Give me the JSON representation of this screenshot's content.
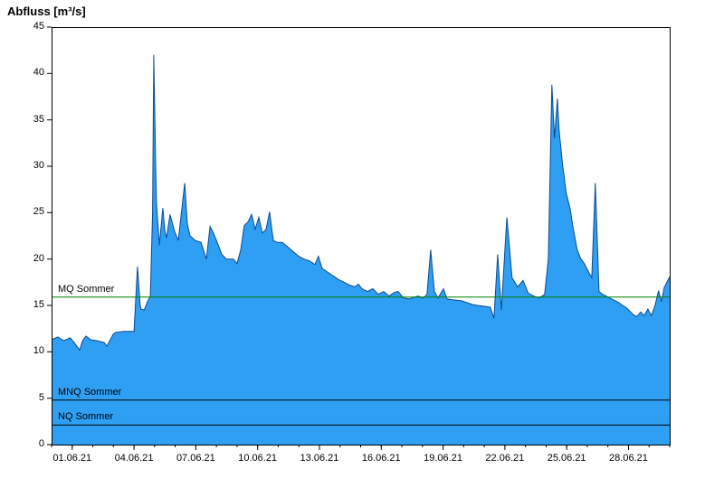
{
  "title": "Abfluss [m³/s]",
  "chart_data": {
    "type": "area",
    "title": "Abfluss [m³/s]",
    "xlabel": "",
    "ylabel": "Abfluss [m³/s]",
    "ylim": [
      0,
      45
    ],
    "xlim_days": [
      0,
      30
    ],
    "grid": false,
    "legend": "none",
    "y_ticks": [
      0,
      5,
      10,
      15,
      20,
      25,
      30,
      35,
      40,
      45
    ],
    "x_ticks": [
      {
        "t": 1,
        "label": "01.06.21"
      },
      {
        "t": 4,
        "label": "04.06.21"
      },
      {
        "t": 7,
        "label": "07.06.21"
      },
      {
        "t": 10,
        "label": "10.06.21"
      },
      {
        "t": 13,
        "label": "13.06.21"
      },
      {
        "t": 16,
        "label": "16.06.21"
      },
      {
        "t": 19,
        "label": "19.06.21"
      },
      {
        "t": 22,
        "label": "22.06.21"
      },
      {
        "t": 25,
        "label": "25.06.21"
      },
      {
        "t": 28,
        "label": "28.06.21"
      }
    ],
    "series": [
      {
        "name": "Abfluss",
        "unit": "m³/s",
        "x": [
          0,
          0.3,
          0.6,
          0.9,
          1.1,
          1.36,
          1.5,
          1.67,
          1.9,
          2.2,
          2.55,
          2.68,
          2.99,
          3.12,
          3.5,
          4.0,
          4.17,
          4.3,
          4.35,
          4.5,
          4.65,
          4.79,
          4.9,
          4.96,
          5.05,
          5.09,
          5.23,
          5.4,
          5.5,
          5.58,
          5.75,
          5.97,
          6.15,
          6.46,
          6.59,
          6.72,
          6.98,
          7.25,
          7.51,
          7.69,
          7.86,
          8.04,
          8.26,
          8.48,
          8.83,
          9.0,
          9.18,
          9.35,
          9.53,
          9.71,
          9.88,
          10.06,
          10.23,
          10.41,
          10.58,
          10.76,
          10.94,
          11.2,
          11.46,
          11.73,
          11.99,
          12.25,
          12.52,
          12.78,
          12.95,
          13.13,
          13.39,
          13.66,
          13.92,
          14.19,
          14.45,
          14.71,
          14.89,
          15.06,
          15.33,
          15.59,
          15.85,
          16.12,
          16.38,
          16.64,
          16.82,
          17.08,
          17.35,
          17.61,
          17.79,
          18.05,
          18.22,
          18.4,
          18.58,
          18.75,
          19.02,
          19.19,
          19.46,
          19.9,
          20.16,
          20.42,
          20.69,
          21.04,
          21.3,
          21.47,
          21.65,
          21.83,
          22.0,
          22.1,
          22.35,
          22.62,
          22.88,
          23.14,
          23.41,
          23.67,
          23.93,
          24.11,
          24.28,
          24.41,
          24.55,
          24.63,
          24.81,
          24.99,
          25.16,
          25.34,
          25.51,
          25.69,
          25.86,
          26.04,
          26.22,
          26.39,
          26.57,
          26.74,
          27.01,
          27.27,
          27.53,
          27.71,
          27.88,
          28.06,
          28.24,
          28.41,
          28.59,
          28.76,
          28.94,
          29.11,
          29.29,
          29.46,
          29.6,
          29.73,
          29.86,
          30.0
        ],
        "y": [
          11.3,
          11.6,
          11.2,
          11.5,
          11.0,
          10.2,
          11.2,
          11.7,
          11.3,
          11.2,
          11.0,
          10.6,
          11.9,
          12.1,
          12.2,
          12.2,
          19.2,
          15.0,
          14.6,
          14.5,
          15.4,
          16.0,
          25.0,
          42.0,
          30.0,
          26.0,
          21.5,
          25.5,
          23.0,
          22.3,
          24.8,
          23.0,
          22.0,
          28.2,
          23.8,
          22.5,
          22.0,
          21.8,
          20.0,
          23.5,
          22.8,
          21.8,
          20.5,
          20.0,
          20.0,
          19.5,
          21.0,
          23.6,
          24.0,
          24.8,
          23.2,
          24.5,
          22.8,
          23.2,
          25.1,
          22.0,
          21.8,
          21.8,
          21.3,
          20.8,
          20.3,
          20.0,
          19.8,
          19.4,
          20.3,
          19.0,
          18.6,
          18.2,
          17.8,
          17.5,
          17.2,
          17.0,
          17.3,
          16.8,
          16.5,
          16.8,
          16.2,
          16.5,
          16.0,
          16.4,
          16.5,
          15.8,
          15.7,
          15.9,
          16.0,
          15.8,
          16.2,
          21.0,
          16.5,
          15.8,
          16.8,
          15.7,
          15.6,
          15.5,
          15.3,
          15.1,
          15.0,
          14.9,
          14.8,
          13.6,
          20.5,
          14.5,
          21.0,
          24.5,
          18.0,
          17.0,
          17.7,
          16.3,
          16.0,
          15.8,
          16.2,
          20.0,
          38.8,
          33.0,
          37.3,
          34.0,
          30.0,
          27.0,
          25.5,
          23.0,
          21.0,
          20.0,
          19.5,
          18.7,
          18.0,
          28.2,
          16.5,
          16.2,
          15.9,
          15.6,
          15.3,
          15.0,
          14.8,
          14.4,
          14.0,
          13.8,
          14.3,
          13.9,
          14.6,
          13.9,
          15.0,
          16.6,
          15.4,
          16.9,
          17.5,
          18.1
        ]
      }
    ],
    "ref_lines": [
      {
        "label": "MQ Sommer",
        "value": 15.9,
        "color": "#008000"
      },
      {
        "label": "MNQ Sommer",
        "value": 4.8,
        "color": "#000000"
      },
      {
        "label": "NQ Sommer",
        "value": 2.1,
        "color": "#000000"
      }
    ],
    "colors": {
      "area_fill": "#2f9ff3",
      "area_stroke": "#0a4a91",
      "axis": "#000000",
      "background": "#ffffff"
    }
  }
}
